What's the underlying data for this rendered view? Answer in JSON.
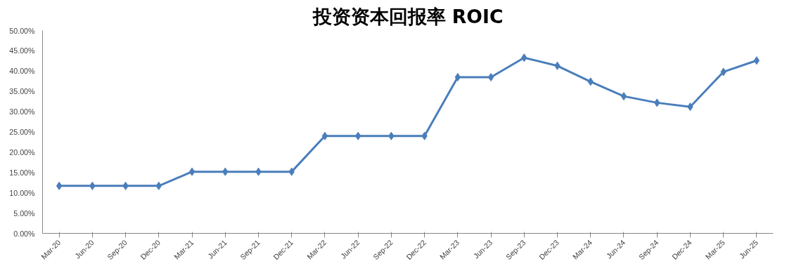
{
  "chart_data": {
    "type": "line",
    "title": "投资资本回报率 ROIC",
    "categories": [
      "Mar-20",
      "Jun-20",
      "Sep-20",
      "Dec-20",
      "Mar-21",
      "Jun-21",
      "Sep-21",
      "Dec-21",
      "Mar-22",
      "Jun-22",
      "Sep-22",
      "Dec-22",
      "Mar-23",
      "Jun-23",
      "Sep-23",
      "Dec-23",
      "Mar-24",
      "Jun-24",
      "Sep-24",
      "Dec-24",
      "Mar-25",
      "Jun-25"
    ],
    "series": [
      {
        "color": "#4a7ebb",
        "values": [
          11.7,
          11.7,
          11.7,
          11.7,
          15.2,
          15.2,
          15.2,
          15.2,
          24.0,
          24.0,
          24.0,
          24.0,
          38.5,
          38.5,
          43.3,
          41.3,
          37.4,
          33.8,
          32.2,
          31.2,
          39.8,
          42.6
        ]
      }
    ],
    "ylim": [
      0,
      50
    ],
    "yticks": [
      {
        "value": 0,
        "label": "0.00%"
      },
      {
        "value": 5,
        "label": "5.00%"
      },
      {
        "value": 10,
        "label": "10.00%"
      },
      {
        "value": 15,
        "label": "15.00%"
      },
      {
        "value": 20,
        "label": "20.00%"
      },
      {
        "value": 25,
        "label": "25.00%"
      },
      {
        "value": 30,
        "label": "30.00%"
      },
      {
        "value": 35,
        "label": "35.00%"
      },
      {
        "value": 40,
        "label": "40.00%"
      },
      {
        "value": 45,
        "label": "45.00%"
      },
      {
        "value": 50,
        "label": "50.00%"
      }
    ],
    "marker": "diamond",
    "line_style": "solid"
  }
}
